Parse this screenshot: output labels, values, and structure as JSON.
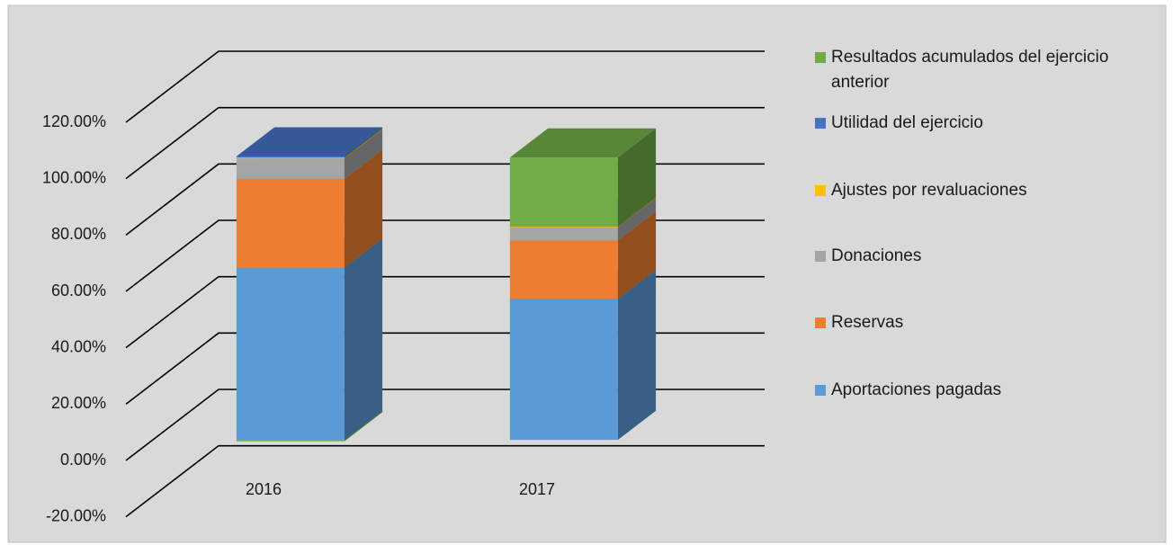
{
  "chart_data": {
    "type": "bar3d_stacked",
    "categories": [
      "2016",
      "2017"
    ],
    "series": [
      {
        "name": "Aportaciones pagadas",
        "color": "#5b9bd5",
        "values": [
          61.1,
          50.0
        ]
      },
      {
        "name": "Reservas",
        "color": "#ed7d31",
        "values": [
          31.5,
          20.7
        ]
      },
      {
        "name": "Donaciones",
        "color": "#a5a5a5",
        "values": [
          7.3,
          4.8
        ]
      },
      {
        "name": "Ajustes por revaluaciones",
        "color": "#ffc000",
        "values": [
          0.3,
          0.2
        ]
      },
      {
        "name": "Utilidad del ejercicio",
        "color": "#4472c4",
        "values": [
          0.4,
          0
        ]
      },
      {
        "name": "Resultados acumulados del ejercicio anterior",
        "color": "#70ad47",
        "values": [
          -0.5,
          24.5
        ]
      }
    ],
    "ylim": [
      -20,
      120
    ],
    "yticks": [
      {
        "value": -20,
        "label": "-20.00%"
      },
      {
        "value": 0,
        "label": "0.00%"
      },
      {
        "value": 20,
        "label": "20.00%"
      },
      {
        "value": 40,
        "label": "40.00%"
      },
      {
        "value": 60,
        "label": "60.00%"
      },
      {
        "value": 80,
        "label": "80.00%"
      },
      {
        "value": 100,
        "label": "100.00%"
      },
      {
        "value": 120,
        "label": "120.00%"
      }
    ],
    "grid": true,
    "legend": "right"
  }
}
